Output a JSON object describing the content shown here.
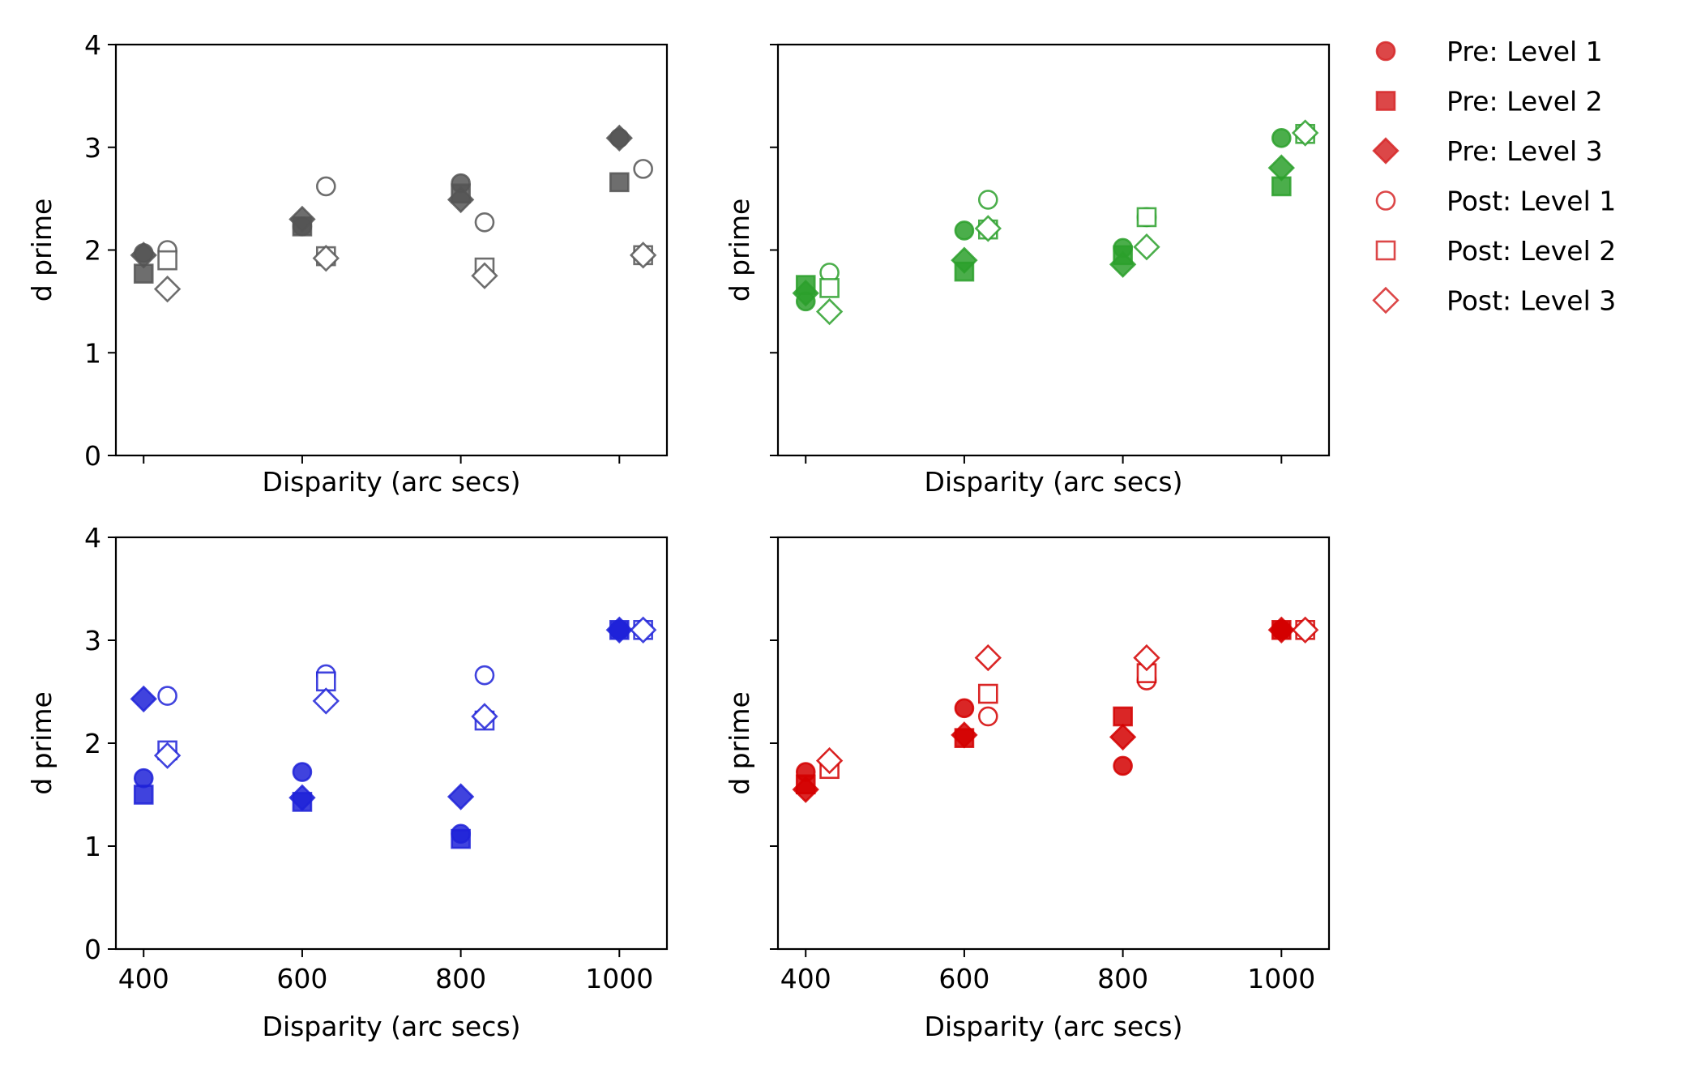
{
  "legend": {
    "placement": "right",
    "color": "#d62728",
    "entries": [
      {
        "label": "Pre: Level 1",
        "marker": "circle",
        "filled": true
      },
      {
        "label": "Pre: Level 2",
        "marker": "square",
        "filled": true
      },
      {
        "label": "Pre: Level 3",
        "marker": "diamond",
        "filled": true
      },
      {
        "label": "Post: Level 1",
        "marker": "circle",
        "filled": false
      },
      {
        "label": "Post: Level 2",
        "marker": "square",
        "filled": false
      },
      {
        "label": "Post: Level 3",
        "marker": "diamond",
        "filled": false
      }
    ]
  },
  "chart_data": [
    {
      "type": "scatter",
      "panel": "top-left",
      "color": "#555555",
      "xlabel": "Disparity (arc secs)",
      "ylabel": "d prime",
      "xticks": [
        400,
        600,
        800,
        1000
      ],
      "show_xtick_labels": false,
      "yticks": [
        0,
        1,
        2,
        3,
        4
      ],
      "show_ytick_labels": true,
      "xlim": [
        365,
        1060
      ],
      "ylim": [
        0,
        4
      ],
      "post_offset": 30,
      "series": [
        {
          "name": "Pre: Level 1",
          "marker": "circle",
          "filled": true,
          "x": [
            400,
            600,
            800,
            1000
          ],
          "y": [
            1.97,
            2.23,
            2.65,
            3.09
          ]
        },
        {
          "name": "Pre: Level 2",
          "marker": "square",
          "filled": true,
          "x": [
            400,
            600,
            800,
            1000
          ],
          "y": [
            1.77,
            2.23,
            2.55,
            2.66
          ]
        },
        {
          "name": "Pre: Level 3",
          "marker": "diamond",
          "filled": true,
          "x": [
            400,
            600,
            800,
            1000
          ],
          "y": [
            1.95,
            2.3,
            2.49,
            3.09
          ]
        },
        {
          "name": "Post: Level 1",
          "marker": "circle",
          "filled": false,
          "x": [
            400,
            600,
            800,
            1000
          ],
          "y": [
            2.0,
            2.62,
            2.27,
            2.79
          ]
        },
        {
          "name": "Post: Level 2",
          "marker": "square",
          "filled": false,
          "x": [
            400,
            600,
            800,
            1000
          ],
          "y": [
            1.9,
            1.94,
            1.83,
            1.95
          ]
        },
        {
          "name": "Post: Level 3",
          "marker": "diamond",
          "filled": false,
          "x": [
            400,
            600,
            800,
            1000
          ],
          "y": [
            1.62,
            1.92,
            1.75,
            1.95
          ]
        }
      ]
    },
    {
      "type": "scatter",
      "panel": "top-right",
      "color": "#2ca02c",
      "xlabel": "Disparity (arc secs)",
      "ylabel": "d prime",
      "xticks": [
        400,
        600,
        800,
        1000
      ],
      "show_xtick_labels": false,
      "yticks": [
        0,
        1,
        2,
        3,
        4
      ],
      "show_ytick_labels": false,
      "xlim": [
        365,
        1060
      ],
      "ylim": [
        0,
        4
      ],
      "post_offset": 30,
      "series": [
        {
          "name": "Pre: Level 1",
          "marker": "circle",
          "filled": true,
          "x": [
            400,
            600,
            800,
            1000
          ],
          "y": [
            1.5,
            2.19,
            2.02,
            3.09
          ]
        },
        {
          "name": "Pre: Level 2",
          "marker": "square",
          "filled": true,
          "x": [
            400,
            600,
            800,
            1000
          ],
          "y": [
            1.66,
            1.79,
            1.95,
            2.62
          ]
        },
        {
          "name": "Pre: Level 3",
          "marker": "diamond",
          "filled": true,
          "x": [
            400,
            600,
            800,
            1000
          ],
          "y": [
            1.58,
            1.9,
            1.86,
            2.8
          ]
        },
        {
          "name": "Post: Level 1",
          "marker": "circle",
          "filled": false,
          "x": [
            400,
            600,
            800,
            1000
          ],
          "y": [
            1.78,
            2.49,
            2.32,
            3.14
          ]
        },
        {
          "name": "Post: Level 2",
          "marker": "square",
          "filled": false,
          "x": [
            400,
            600,
            800,
            1000
          ],
          "y": [
            1.63,
            2.2,
            2.32,
            3.13
          ]
        },
        {
          "name": "Post: Level 3",
          "marker": "diamond",
          "filled": false,
          "x": [
            400,
            600,
            800,
            1000
          ],
          "y": [
            1.4,
            2.21,
            2.03,
            3.14
          ]
        }
      ]
    },
    {
      "type": "scatter",
      "panel": "bottom-left",
      "color": "#1f22d8",
      "xlabel": "Disparity (arc secs)",
      "ylabel": "d prime",
      "xticks": [
        400,
        600,
        800,
        1000
      ],
      "show_xtick_labels": true,
      "yticks": [
        0,
        1,
        2,
        3,
        4
      ],
      "show_ytick_labels": true,
      "xlim": [
        365,
        1060
      ],
      "ylim": [
        0,
        4
      ],
      "post_offset": 30,
      "series": [
        {
          "name": "Pre: Level 1",
          "marker": "circle",
          "filled": true,
          "x": [
            400,
            600,
            800,
            1000
          ],
          "y": [
            1.66,
            1.72,
            1.12,
            3.1
          ]
        },
        {
          "name": "Pre: Level 2",
          "marker": "square",
          "filled": true,
          "x": [
            400,
            600,
            800,
            1000
          ],
          "y": [
            1.5,
            1.43,
            1.07,
            3.1
          ]
        },
        {
          "name": "Pre: Level 3",
          "marker": "diamond",
          "filled": true,
          "x": [
            400,
            600,
            800,
            1000
          ],
          "y": [
            2.43,
            1.47,
            1.48,
            3.1
          ]
        },
        {
          "name": "Post: Level 1",
          "marker": "circle",
          "filled": false,
          "x": [
            400,
            600,
            800,
            1000
          ],
          "y": [
            2.46,
            2.67,
            2.66,
            3.1
          ]
        },
        {
          "name": "Post: Level 2",
          "marker": "square",
          "filled": false,
          "x": [
            400,
            600,
            800,
            1000
          ],
          "y": [
            1.93,
            2.6,
            2.22,
            3.1
          ]
        },
        {
          "name": "Post: Level 3",
          "marker": "diamond",
          "filled": false,
          "x": [
            400,
            600,
            800,
            1000
          ],
          "y": [
            1.88,
            2.41,
            2.26,
            3.1
          ]
        }
      ]
    },
    {
      "type": "scatter",
      "panel": "bottom-right",
      "color": "#d40000",
      "xlabel": "Disparity (arc secs)",
      "ylabel": "d prime",
      "xticks": [
        400,
        600,
        800,
        1000
      ],
      "show_xtick_labels": true,
      "yticks": [
        0,
        1,
        2,
        3,
        4
      ],
      "show_ytick_labels": false,
      "xlim": [
        365,
        1060
      ],
      "ylim": [
        0,
        4
      ],
      "post_offset": 30,
      "series": [
        {
          "name": "Pre: Level 1",
          "marker": "circle",
          "filled": true,
          "x": [
            400,
            600,
            800,
            1000
          ],
          "y": [
            1.72,
            2.34,
            1.78,
            3.1
          ]
        },
        {
          "name": "Pre: Level 2",
          "marker": "square",
          "filled": true,
          "x": [
            400,
            600,
            800,
            1000
          ],
          "y": [
            1.6,
            2.05,
            2.26,
            3.1
          ]
        },
        {
          "name": "Pre: Level 3",
          "marker": "diamond",
          "filled": true,
          "x": [
            400,
            600,
            800,
            1000
          ],
          "y": [
            1.55,
            2.08,
            2.06,
            3.1
          ]
        },
        {
          "name": "Post: Level 1",
          "marker": "circle",
          "filled": false,
          "x": [
            400,
            600,
            800,
            1000
          ],
          "y": [
            1.82,
            2.26,
            2.61,
            3.1
          ]
        },
        {
          "name": "Post: Level 2",
          "marker": "square",
          "filled": false,
          "x": [
            400,
            600,
            800,
            1000
          ],
          "y": [
            1.75,
            2.48,
            2.68,
            3.1
          ]
        },
        {
          "name": "Post: Level 3",
          "marker": "diamond",
          "filled": false,
          "x": [
            400,
            600,
            800,
            1000
          ],
          "y": [
            1.83,
            2.83,
            2.83,
            3.1
          ]
        }
      ]
    }
  ]
}
